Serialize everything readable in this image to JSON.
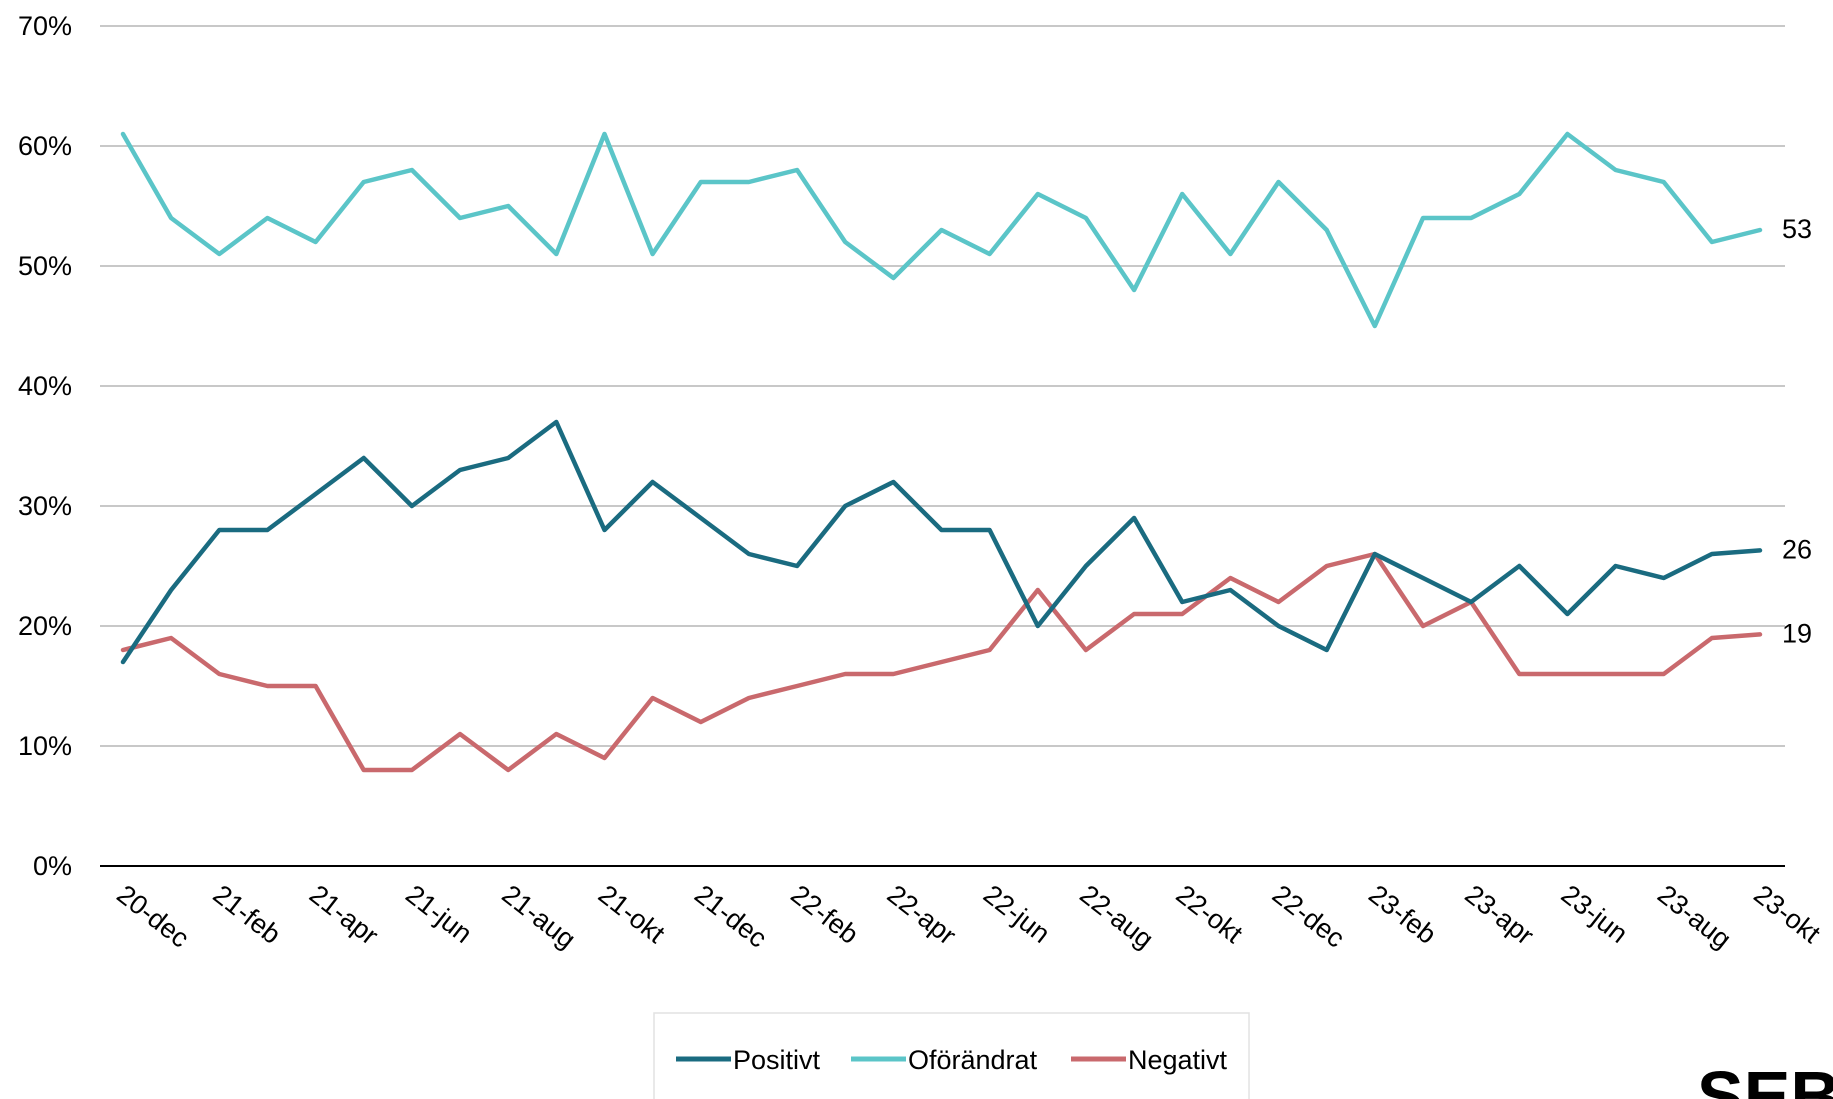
{
  "chart_data": {
    "type": "line",
    "title": "",
    "xlabel": "",
    "ylabel": "",
    "ylim": [
      0,
      70
    ],
    "yticks": [
      "0%",
      "10%",
      "20%",
      "30%",
      "40%",
      "50%",
      "60%",
      "70%"
    ],
    "grid": true,
    "legend_position": "bottom",
    "categories": [
      "20-dec",
      "21-jan",
      "21-feb",
      "21-mar",
      "21-apr",
      "21-maj",
      "21-jun",
      "21-jul",
      "21-aug",
      "21-sep",
      "21-okt",
      "21-nov",
      "21-dec",
      "22-jan",
      "22-feb",
      "22-mar",
      "22-apr",
      "22-maj",
      "22-jun",
      "22-jul",
      "22-aug",
      "22-sep",
      "22-okt",
      "22-nov",
      "22-dec",
      "23-jan",
      "23-feb",
      "23-mar",
      "23-apr",
      "23-maj",
      "23-jun",
      "23-jul",
      "23-aug",
      "23-sep",
      "23-okt"
    ],
    "xtick_labels": [
      "20-dec",
      "21-feb",
      "21-apr",
      "21-jun",
      "21-aug",
      "21-okt",
      "21-dec",
      "22-feb",
      "22-apr",
      "22-jun",
      "22-aug",
      "22-okt",
      "22-dec",
      "23-feb",
      "23-apr",
      "23-jun",
      "23-aug",
      "23-okt"
    ],
    "series": [
      {
        "name": "Positivt",
        "color": "#1a6b80",
        "values": [
          17,
          23,
          28,
          28,
          31,
          34,
          30,
          33,
          34,
          37,
          28,
          32,
          29,
          26,
          25,
          30,
          32,
          28,
          28,
          20,
          25,
          29,
          22,
          23,
          20,
          18,
          26,
          24,
          22,
          25,
          21,
          25,
          24,
          26,
          26.3
        ],
        "end_label": "26"
      },
      {
        "name": "Oförändrat",
        "color": "#5bc5c8",
        "values": [
          61,
          54,
          51,
          54,
          52,
          57,
          58,
          54,
          55,
          51,
          61,
          51,
          57,
          57,
          58,
          52,
          49,
          53,
          51,
          56,
          54,
          48,
          56,
          51,
          57,
          53,
          45,
          54,
          54,
          56,
          61,
          58,
          57,
          52,
          53
        ],
        "end_label": "53"
      },
      {
        "name": "Negativt",
        "color": "#c9696d",
        "values": [
          18,
          19,
          16,
          15,
          15,
          8,
          8,
          11,
          8,
          11,
          9,
          14,
          12,
          14,
          15,
          16,
          16,
          17,
          18,
          23,
          18,
          21,
          21,
          24,
          22,
          25,
          26,
          20,
          22,
          16,
          16,
          16,
          16,
          19,
          19.3
        ],
        "end_label": "19"
      }
    ]
  },
  "logo": {
    "text": "SEB"
  }
}
